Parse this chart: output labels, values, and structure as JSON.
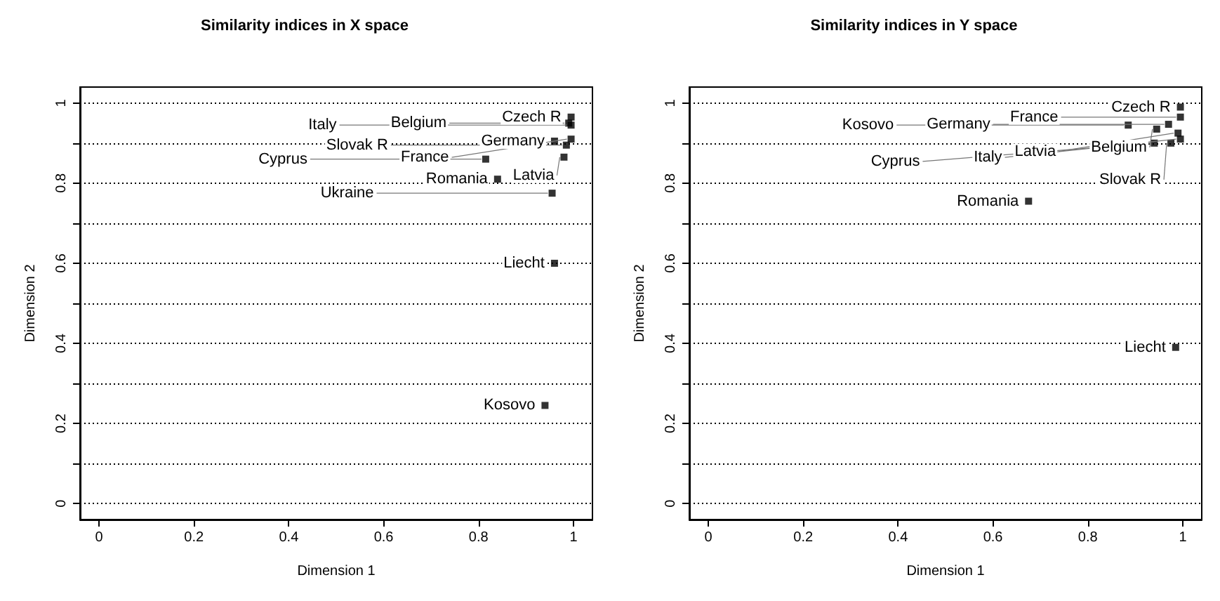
{
  "chart_data": [
    {
      "type": "scatter",
      "title": "Similarity indices in X space",
      "xlabel": "Dimension 1",
      "ylabel": "Dimension 2",
      "color": "#000000",
      "marker": "square",
      "grid": "y",
      "x": [
        0.995,
        0.99,
        0.995,
        0.96,
        0.995,
        0.985,
        0.815,
        0.98,
        0.84,
        0.955,
        0.96,
        0.94
      ],
      "values": [
        0.965,
        0.95,
        0.945,
        0.905,
        0.91,
        0.895,
        0.86,
        0.865,
        0.81,
        0.775,
        0.6,
        0.245
      ],
      "annotations": [
        {
          "text": "Czech R",
          "x": 0.995,
          "y": 0.965
        },
        {
          "text": "Belgium",
          "x": 0.99,
          "y": 0.95
        },
        {
          "text": "Italy",
          "x": 0.995,
          "y": 0.945
        },
        {
          "text": "Germany",
          "x": 0.96,
          "y": 0.905
        },
        {
          "text": "France",
          "x": 0.995,
          "y": 0.91
        },
        {
          "text": "Slovak R",
          "x": 0.985,
          "y": 0.895
        },
        {
          "text": "Cyprus",
          "x": 0.815,
          "y": 0.86
        },
        {
          "text": "Latvia",
          "x": 0.98,
          "y": 0.865
        },
        {
          "text": "Romania",
          "x": 0.84,
          "y": 0.81
        },
        {
          "text": "Ukraine",
          "x": 0.955,
          "y": 0.775
        },
        {
          "text": "Liecht",
          "x": 0.96,
          "y": 0.6
        },
        {
          "text": "Kosovo",
          "x": 0.94,
          "y": 0.245
        }
      ],
      "xlim": [
        -0.04,
        1.04
      ],
      "xticks": [
        0,
        0.2,
        0.4,
        0.6,
        0.8,
        1
      ],
      "ylim": [
        -0.04,
        1.04
      ],
      "yticks": [
        0,
        {
          "value": 0.1,
          "label": null
        },
        0.2,
        {
          "value": 0.3,
          "label": null
        },
        0.4,
        {
          "value": 0.5,
          "label": null
        },
        0.6,
        {
          "value": 0.7,
          "label": null
        },
        0.8,
        {
          "value": 0.9,
          "label": null
        },
        1
      ]
    },
    {
      "type": "scatter",
      "title": "Similarity indices in Y space",
      "xlabel": "Dimension 1",
      "ylabel": "Dimension 2",
      "color": "#000000",
      "marker": "square",
      "grid": "y",
      "x": [
        0.995,
        0.995,
        0.97,
        0.885,
        0.945,
        0.99,
        0.995,
        0.94,
        0.975,
        0.675,
        0.985
      ],
      "values": [
        0.99,
        0.965,
        0.947,
        0.945,
        0.935,
        0.925,
        0.91,
        0.9,
        0.9,
        0.755,
        0.39
      ],
      "annotations": [
        {
          "text": "Czech R",
          "x": 0.995,
          "y": 0.99
        },
        {
          "text": "France",
          "x": 0.995,
          "y": 0.965
        },
        {
          "text": "Germany",
          "x": 0.97,
          "y": 0.947
        },
        {
          "text": "Kosovo",
          "x": 0.885,
          "y": 0.945
        },
        {
          "text": "Belgium",
          "x": 0.945,
          "y": 0.935
        },
        {
          "text": "Latvia",
          "x": 0.99,
          "y": 0.925
        },
        {
          "text": "Italy",
          "x": 0.995,
          "y": 0.91
        },
        {
          "text": "Cyprus",
          "x": 0.94,
          "y": 0.9
        },
        {
          "text": "Slovak R",
          "x": 0.975,
          "y": 0.9
        },
        {
          "text": "Romania",
          "x": 0.675,
          "y": 0.755
        },
        {
          "text": "Liecht",
          "x": 0.985,
          "y": 0.39
        }
      ],
      "xlim": [
        -0.04,
        1.04
      ],
      "xticks": [
        0,
        0.2,
        0.4,
        0.6,
        0.8,
        1
      ],
      "ylim": [
        -0.04,
        1.04
      ],
      "yticks": [
        0,
        {
          "value": 0.1,
          "label": null
        },
        0.2,
        {
          "value": 0.3,
          "label": null
        },
        0.4,
        {
          "value": 0.5,
          "label": null
        },
        0.6,
        {
          "value": 0.7,
          "label": null
        },
        0.8,
        {
          "value": 0.9,
          "label": null
        },
        1
      ]
    }
  ]
}
